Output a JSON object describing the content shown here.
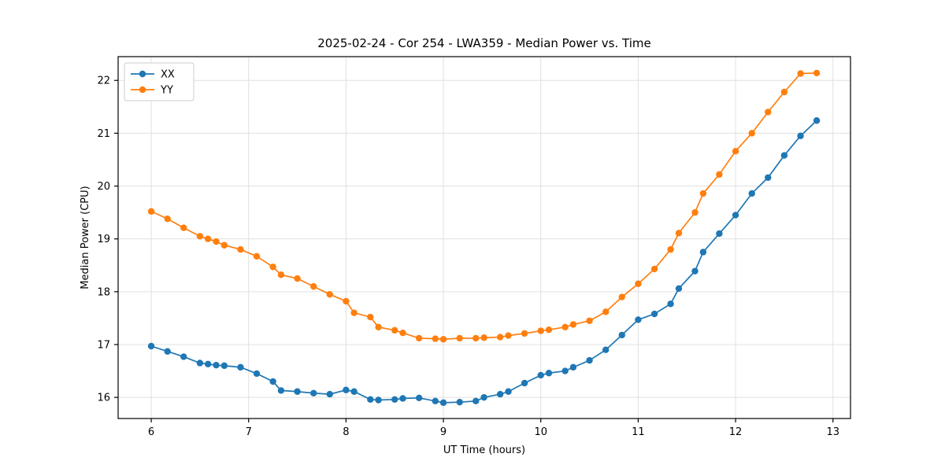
{
  "chart_data": {
    "type": "line",
    "title": "2025-02-24 - Cor 254 - LWA359 - Median Power vs. Time",
    "xlabel": "UT Time (hours)",
    "ylabel": "Median Power (CPU)",
    "xlim": [
      5.66,
      13.18
    ],
    "ylim": [
      15.6,
      22.45
    ],
    "xticks": [
      6,
      7,
      8,
      9,
      10,
      11,
      12,
      13
    ],
    "yticks": [
      16,
      17,
      18,
      19,
      20,
      21,
      22
    ],
    "grid": true,
    "legend_position": "upper-left",
    "grid_color": "#e0e0e0",
    "spine_color": "#000000",
    "background_color": "#ffffff",
    "x": [
      6.0,
      6.167,
      6.333,
      6.5,
      6.583,
      6.667,
      6.75,
      6.917,
      7.083,
      7.25,
      7.333,
      7.5,
      7.667,
      7.833,
      8.0,
      8.083,
      8.25,
      8.333,
      8.5,
      8.583,
      8.75,
      8.917,
      9.0,
      9.167,
      9.333,
      9.417,
      9.583,
      9.667,
      9.833,
      10.0,
      10.083,
      10.25,
      10.333,
      10.5,
      10.667,
      10.833,
      11.0,
      11.167,
      11.333,
      11.417,
      11.583,
      11.667,
      11.833,
      12.0,
      12.167,
      12.333,
      12.5,
      12.667,
      12.833
    ],
    "series": [
      {
        "name": "XX",
        "color": "#1f77b4",
        "values": [
          16.97,
          16.87,
          16.77,
          16.65,
          16.63,
          16.61,
          16.6,
          16.57,
          16.45,
          16.3,
          16.13,
          16.11,
          16.08,
          16.06,
          16.14,
          16.11,
          15.96,
          15.95,
          15.96,
          15.98,
          15.99,
          15.93,
          15.9,
          15.91,
          15.93,
          16.0,
          16.06,
          16.11,
          16.27,
          16.42,
          16.46,
          16.5,
          16.57,
          16.7,
          16.9,
          17.18,
          17.47,
          17.58,
          17.77,
          18.06,
          18.39,
          18.75,
          19.1,
          19.45,
          19.86,
          20.16,
          20.58,
          20.95,
          21.24
        ]
      },
      {
        "name": "YY",
        "color": "#ff7f0e",
        "values": [
          19.52,
          19.38,
          19.21,
          19.05,
          19.0,
          18.95,
          18.88,
          18.8,
          18.67,
          18.47,
          18.32,
          18.25,
          18.1,
          17.95,
          17.82,
          17.6,
          17.52,
          17.33,
          17.27,
          17.22,
          17.12,
          17.11,
          17.1,
          17.12,
          17.12,
          17.13,
          17.14,
          17.17,
          17.21,
          17.26,
          17.28,
          17.33,
          17.38,
          17.45,
          17.62,
          17.9,
          18.15,
          18.43,
          18.8,
          19.11,
          19.5,
          19.86,
          20.22,
          20.66,
          21.0,
          21.4,
          21.78,
          22.13,
          22.14
        ]
      }
    ]
  }
}
